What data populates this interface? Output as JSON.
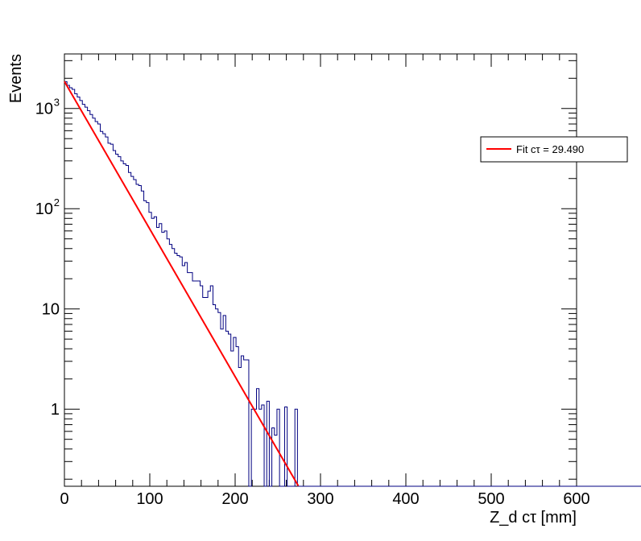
{
  "chart_data": {
    "type": "histogram",
    "title": "",
    "xlabel": "Z_d cτ [mm]",
    "ylabel": "Events",
    "xlim": [
      0,
      600
    ],
    "ylim": [
      0.17,
      3500
    ],
    "yscale": "log",
    "x_ticks": [
      {
        "value": 0,
        "label": "0"
      },
      {
        "value": 100,
        "label": "100"
      },
      {
        "value": 200,
        "label": "200"
      },
      {
        "value": 300,
        "label": "300"
      },
      {
        "value": 400,
        "label": "400"
      },
      {
        "value": 500,
        "label": "500"
      },
      {
        "value": 600,
        "label": "600"
      }
    ],
    "y_ticks": [
      {
        "value": 1,
        "label": "1"
      },
      {
        "value": 10,
        "label": "10"
      },
      {
        "value": 100,
        "label": "10",
        "exp": "2"
      },
      {
        "value": 1000,
        "label": "10",
        "exp": "3"
      }
    ],
    "histogram": {
      "name": "Z_d cτ",
      "color": "#000080",
      "bin_edges_start": 0,
      "bin_width": 3,
      "counts": [
        1850,
        1700,
        1610,
        1550,
        1400,
        1300,
        1200,
        1100,
        1030,
        950,
        870,
        800,
        740,
        700,
        590,
        560,
        520,
        450,
        440,
        380,
        350,
        330,
        300,
        280,
        270,
        230,
        210,
        195,
        175,
        170,
        150,
        120,
        115,
        92,
        80,
        83,
        65,
        71,
        58,
        60,
        50,
        44,
        40,
        36,
        34,
        33,
        27,
        29,
        23,
        23,
        19,
        19,
        19,
        17,
        13,
        13,
        15,
        17,
        11,
        10,
        9.2,
        6.3,
        8.6,
        6,
        5.6,
        3.8,
        5.2,
        4.2,
        2.6,
        3.4,
        3.1,
        3.1,
        0,
        1,
        1,
        1.6,
        1,
        1.1,
        0,
        1.2,
        0,
        0.65,
        0.55,
        1,
        0,
        0,
        1.05,
        0,
        0,
        0,
        1,
        0,
        0,
        0,
        0,
        0,
        0,
        0,
        0,
        0,
        0,
        0,
        0,
        0,
        0,
        0,
        0,
        0,
        0,
        0,
        0,
        0,
        0,
        0,
        0,
        0,
        0,
        0,
        0,
        0,
        0,
        0,
        0,
        0,
        0,
        0,
        0,
        0,
        0,
        0,
        0,
        0,
        0,
        0,
        0,
        0,
        0,
        0,
        0,
        0,
        0,
        0,
        0,
        0,
        0,
        0,
        0,
        0,
        0,
        0,
        0,
        0,
        0,
        0,
        0,
        0,
        0,
        0,
        0,
        0,
        0,
        0,
        0,
        0,
        0,
        0,
        0,
        0,
        0,
        0,
        0,
        0,
        0,
        0,
        0,
        0,
        0,
        0,
        0,
        0,
        0,
        0,
        0,
        0,
        0,
        0,
        0,
        0,
        0,
        0,
        0,
        0,
        0,
        0,
        0,
        0,
        0,
        0,
        0,
        0,
        0,
        0,
        0,
        0,
        0,
        0,
        0,
        0,
        0,
        0,
        0,
        0,
        0,
        0,
        0,
        0,
        0,
        0,
        0,
        0,
        0,
        0,
        0,
        0,
        0,
        0,
        0,
        0,
        0
      ]
    },
    "fit": {
      "name": "Fit cτ = 29.490",
      "color": "#ff0000",
      "model": "exponential",
      "amplitude": 1860,
      "ctau": 29.49,
      "x_range": [
        0,
        279
      ]
    },
    "legend": {
      "placement": "right",
      "entries": [
        {
          "label": "Fit cτ = 29.490",
          "color": "#ff0000"
        }
      ]
    }
  }
}
